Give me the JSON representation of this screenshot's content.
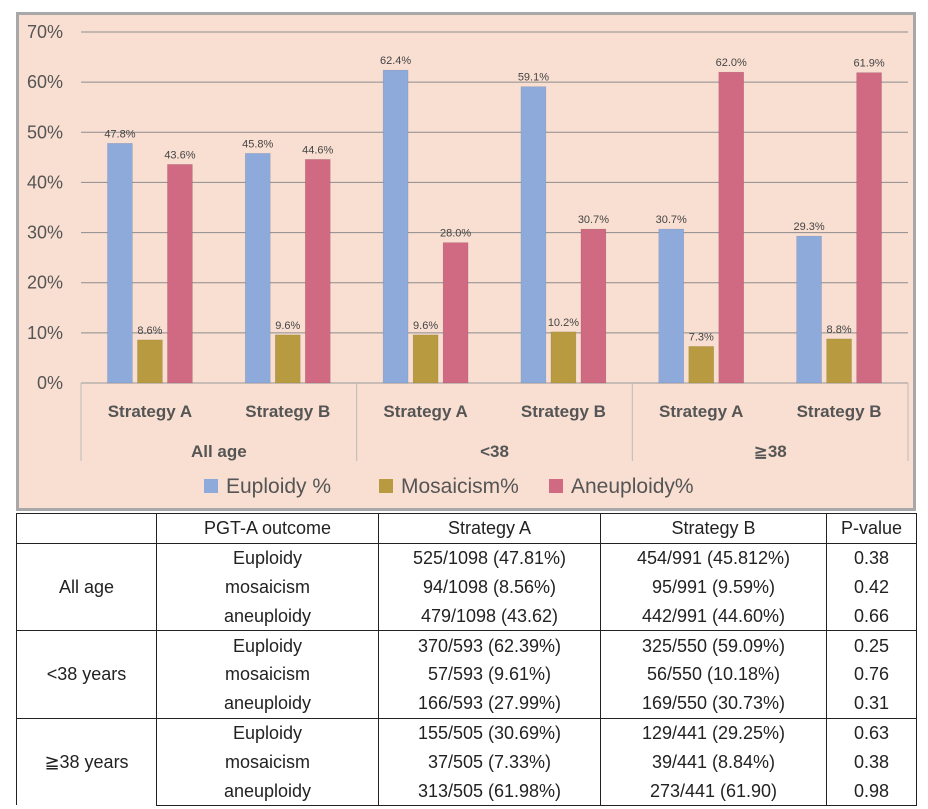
{
  "chart_data": {
    "type": "bar",
    "groups": [
      {
        "label": "All age",
        "categories": [
          "Strategy A",
          "Strategy B"
        ]
      },
      {
        "label": "<38",
        "categories": [
          "Strategy A",
          "Strategy B"
        ]
      },
      {
        "label": "≧38",
        "categories": [
          "Strategy A",
          "Strategy B"
        ]
      }
    ],
    "categories": [
      "Strategy A",
      "Strategy B",
      "Strategy A",
      "Strategy B",
      "Strategy A",
      "Strategy B"
    ],
    "series": [
      {
        "name": "Euploidy %",
        "color": "#8eaadb",
        "values": [
          47.8,
          45.8,
          62.4,
          59.1,
          30.7,
          29.3
        ],
        "labels": [
          "47.8%",
          "45.8%",
          "62.4%",
          "59.1%",
          "30.7%",
          "29.3%"
        ]
      },
      {
        "name": "Mosaicism%",
        "color": "#b89b40",
        "values": [
          8.6,
          9.6,
          9.6,
          10.2,
          7.3,
          8.8
        ],
        "labels": [
          "8.6%",
          "9.6%",
          "9.6%",
          "10.2%",
          "7.3%",
          "8.8%"
        ]
      },
      {
        "name": "Aneuploidy%",
        "color": "#d06a82",
        "values": [
          43.6,
          44.6,
          28.0,
          30.7,
          62.0,
          61.9
        ],
        "labels": [
          "43.6%",
          "44.6%",
          "28.0%",
          "30.7%",
          "62.0%",
          "61.9%"
        ]
      }
    ],
    "y_ticks": [
      "0%",
      "10%",
      "20%",
      "30%",
      "40%",
      "50%",
      "60%",
      "70%"
    ],
    "ylim": [
      0,
      70
    ],
    "grid": true,
    "legend_position": "bottom",
    "background": "#f9dfd2",
    "border_color": "#a8a8a8"
  },
  "table": {
    "headers": [
      "",
      "PGT-A outcome",
      "Strategy A",
      "Strategy B",
      "P-value"
    ],
    "groups": [
      {
        "label": "All age",
        "rows": [
          [
            "Euploidy",
            "525/1098 (47.81%)",
            "454/991 (45.812%)",
            "0.38"
          ],
          [
            "mosaicism",
            "94/1098 (8.56%)",
            "95/991 (9.59%)",
            "0.42"
          ],
          [
            "aneuploidy",
            "479/1098 (43.62)",
            "442/991 (44.60%)",
            "0.66"
          ]
        ]
      },
      {
        "label": "<38 years",
        "rows": [
          [
            "Euploidy",
            "370/593 (62.39%)",
            "325/550 (59.09%)",
            "0.25"
          ],
          [
            "mosaicism",
            "57/593 (9.61%)",
            "56/550 (10.18%)",
            "0.76"
          ],
          [
            "aneuploidy",
            "166/593 (27.99%)",
            "169/550 (30.73%)",
            "0.31"
          ]
        ]
      },
      {
        "label": "≧38 years",
        "rows": [
          [
            "Euploidy",
            "155/505 (30.69%)",
            "129/441 (29.25%)",
            "0.63"
          ],
          [
            "mosaicism",
            "37/505 (7.33%)",
            "39/441 (8.84%)",
            "0.38"
          ],
          [
            "aneuploidy",
            "313/505 (61.98%)",
            "273/441 (61.90)",
            "0.98"
          ]
        ]
      }
    ]
  }
}
